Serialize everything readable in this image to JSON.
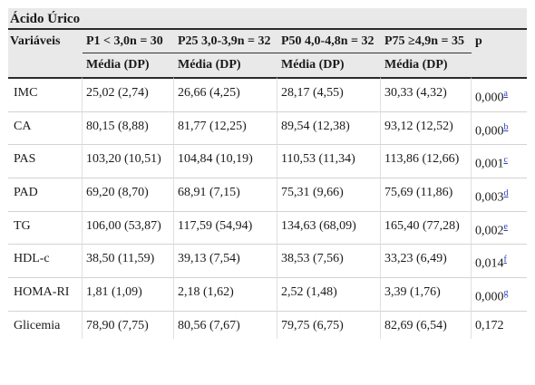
{
  "table_title": "Ácido Úrico",
  "header": {
    "variables_label": "Variáveis",
    "groups": [
      "P1 < 3,0n = 30",
      "P25 3,0-3,9n = 32",
      "P50 4,0-4,8n = 32",
      "P75 ≥4,9n = 35"
    ],
    "p_label": "p",
    "sub_label": "Média (DP)"
  },
  "rows": [
    {
      "var": "IMC",
      "vals": [
        "25,02 (2,74)",
        "26,66 (4,25)",
        "28,17 (4,55)",
        "30,33 (4,32)"
      ],
      "p": "0,000",
      "sup": "a"
    },
    {
      "var": "CA",
      "vals": [
        "80,15 (8,88)",
        "81,77 (12,25)",
        "89,54 (12,38)",
        "93,12 (12,52)"
      ],
      "p": "0,000",
      "sup": "b"
    },
    {
      "var": "PAS",
      "vals": [
        "103,20 (10,51)",
        "104,84 (10,19)",
        "110,53 (11,34)",
        "113,86 (12,66)"
      ],
      "p": "0,001",
      "sup": "c"
    },
    {
      "var": "PAD",
      "vals": [
        "69,20 (8,70)",
        "68,91 (7,15)",
        "75,31 (9,66)",
        "75,69 (11,86)"
      ],
      "p": "0,003",
      "sup": "d"
    },
    {
      "var": "TG",
      "vals": [
        "106,00 (53,87)",
        "117,59 (54,94)",
        "134,63 (68,09)",
        "165,40 (77,28)"
      ],
      "p": "0,002",
      "sup": "e"
    },
    {
      "var": "HDL-c",
      "vals": [
        "38,50 (11,59)",
        "39,13 (7,54)",
        "38,53 (7,56)",
        "33,23 (6,49)"
      ],
      "p": "0,014",
      "sup": "f"
    },
    {
      "var": "HOMA-RI",
      "vals": [
        "1,81 (1,09)",
        "2,18 (1,62)",
        "2,52 (1,48)",
        "3,39 (1,76)"
      ],
      "p": "0,000",
      "sup": "g"
    },
    {
      "var": "Glicemia",
      "vals": [
        "78,90 (7,75)",
        "80,56 (7,67)",
        "79,75 (6,75)",
        "82,69 (6,54)"
      ],
      "p": "0,172",
      "sup": ""
    }
  ]
}
